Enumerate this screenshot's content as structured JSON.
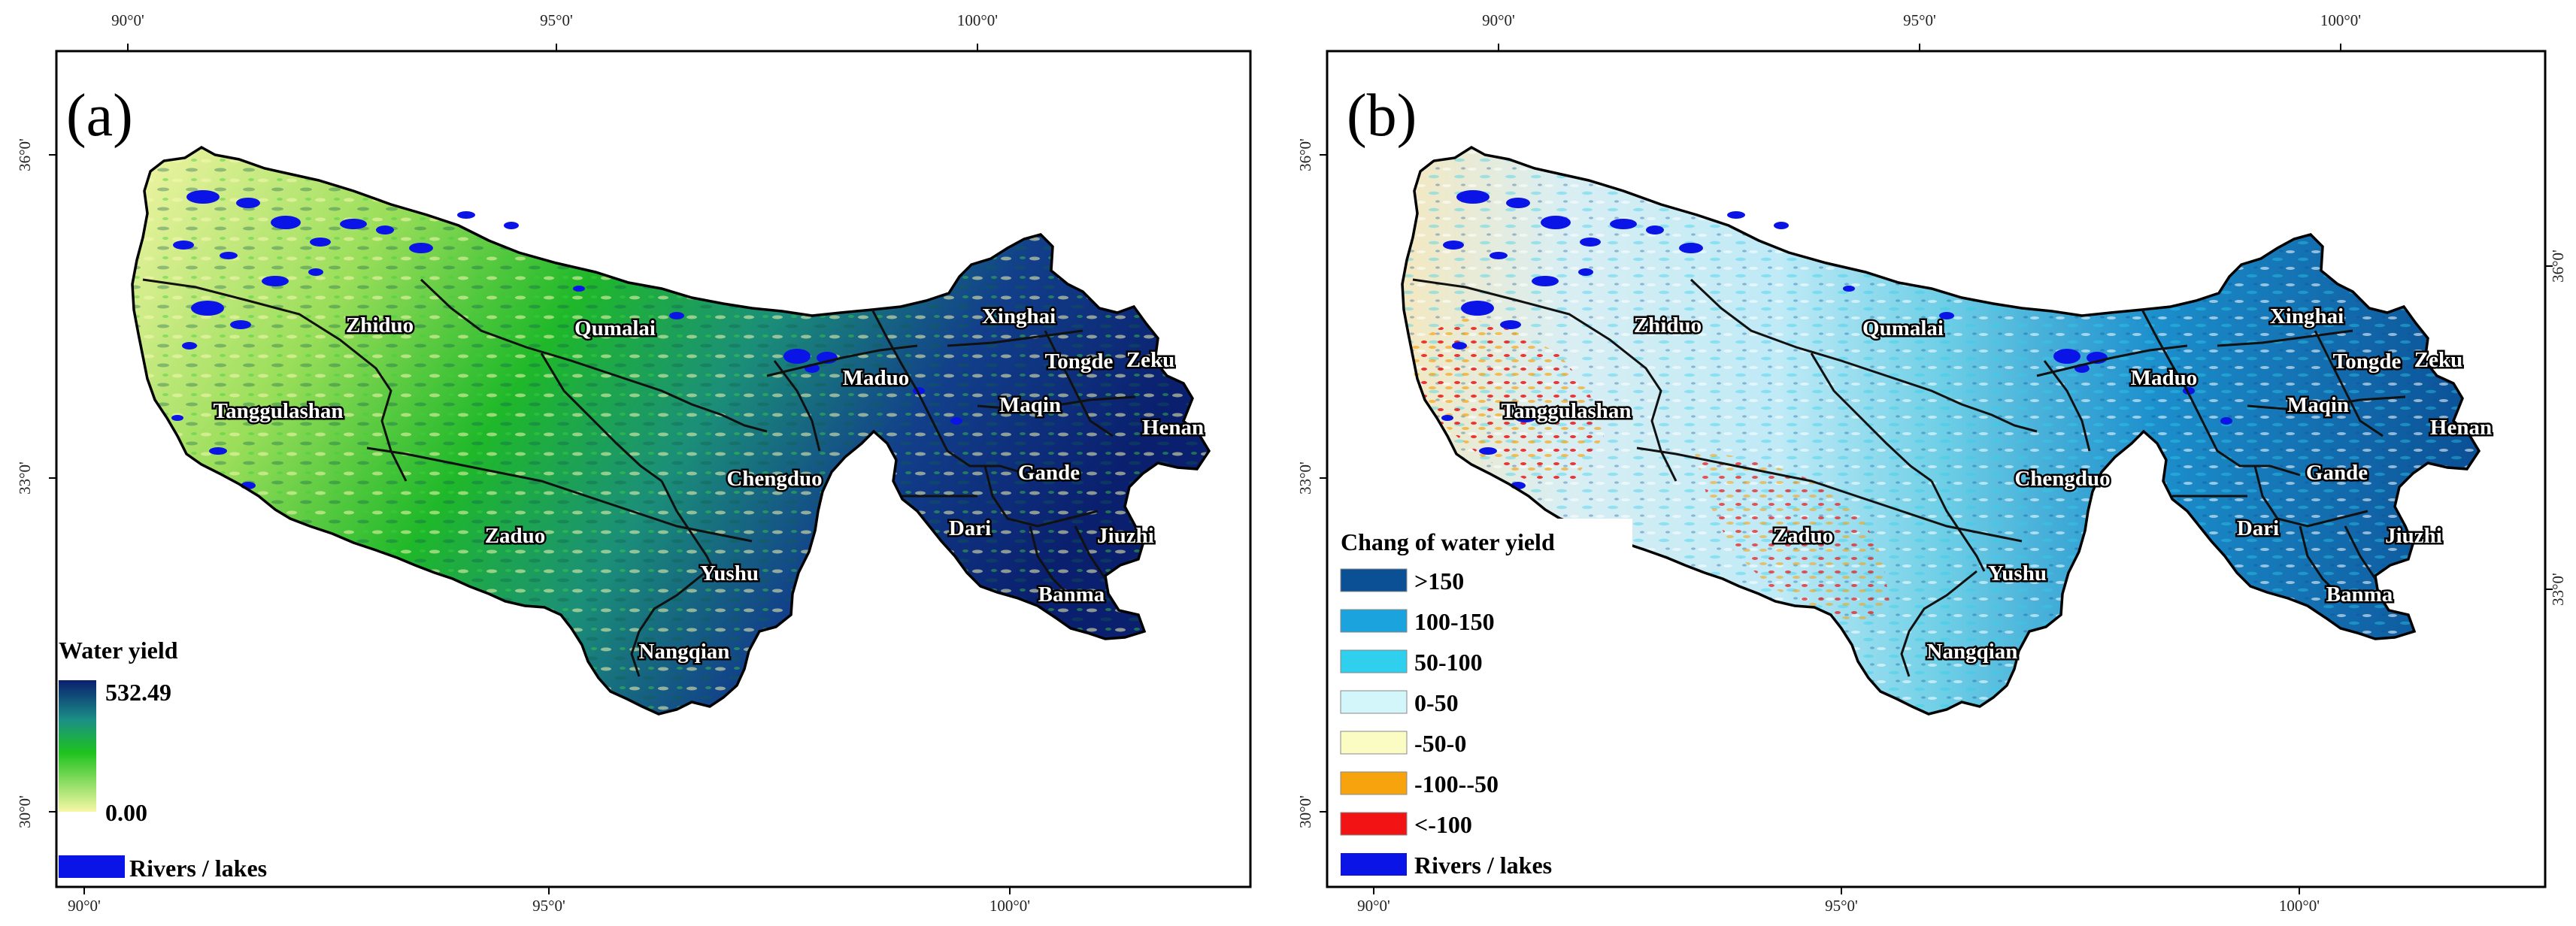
{
  "colors": {
    "wy_low": "#f7f7a6",
    "wy_mid": "#1fc21f",
    "wy_high": "#0a1f6e",
    "river": "#0a14e6",
    "c_gt150": "#0b4f95",
    "c_100_150": "#1aa3dc",
    "c_50_100": "#2ed0ee",
    "c_0_50": "#d3f6fb",
    "c_m50_0": "#fbfbc4",
    "c_m100_m50": "#f6a30e",
    "c_lt_m100": "#f21414"
  },
  "axis_labels": {
    "lon": [
      "90°0'",
      "95°0'",
      "100°0'"
    ],
    "lat_a": [
      "36°0'",
      "33°0'",
      "30°0'"
    ],
    "lat_b_left": [
      "36°0'",
      "33°0'",
      "30°0'"
    ],
    "lat_b_right": [
      "36°0'",
      "33°0'"
    ]
  },
  "panel_a": {
    "label": "(a)",
    "legend": {
      "title": "Water yield",
      "max": "532.49",
      "min": "0.00",
      "rivers": "Rivers / lakes"
    }
  },
  "panel_b": {
    "label": "(b)",
    "legend": {
      "title": "Chang of water yield",
      "classes": [
        ">150",
        "100-150",
        "50-100",
        "0-50",
        "-50-0",
        "-100--50",
        "<-100"
      ],
      "rivers": "Rivers / lakes"
    }
  },
  "places": [
    "Zhiduo",
    "Qumalai",
    "Maduo",
    "Xinghai",
    "Tongde",
    "Zeku",
    "Tanggulashan",
    "Maqin",
    "Henan",
    "Chengduo",
    "Gande",
    "Zaduo",
    "Dari",
    "Jiuzhi",
    "Yushu",
    "Banma",
    "Nangqian"
  ]
}
